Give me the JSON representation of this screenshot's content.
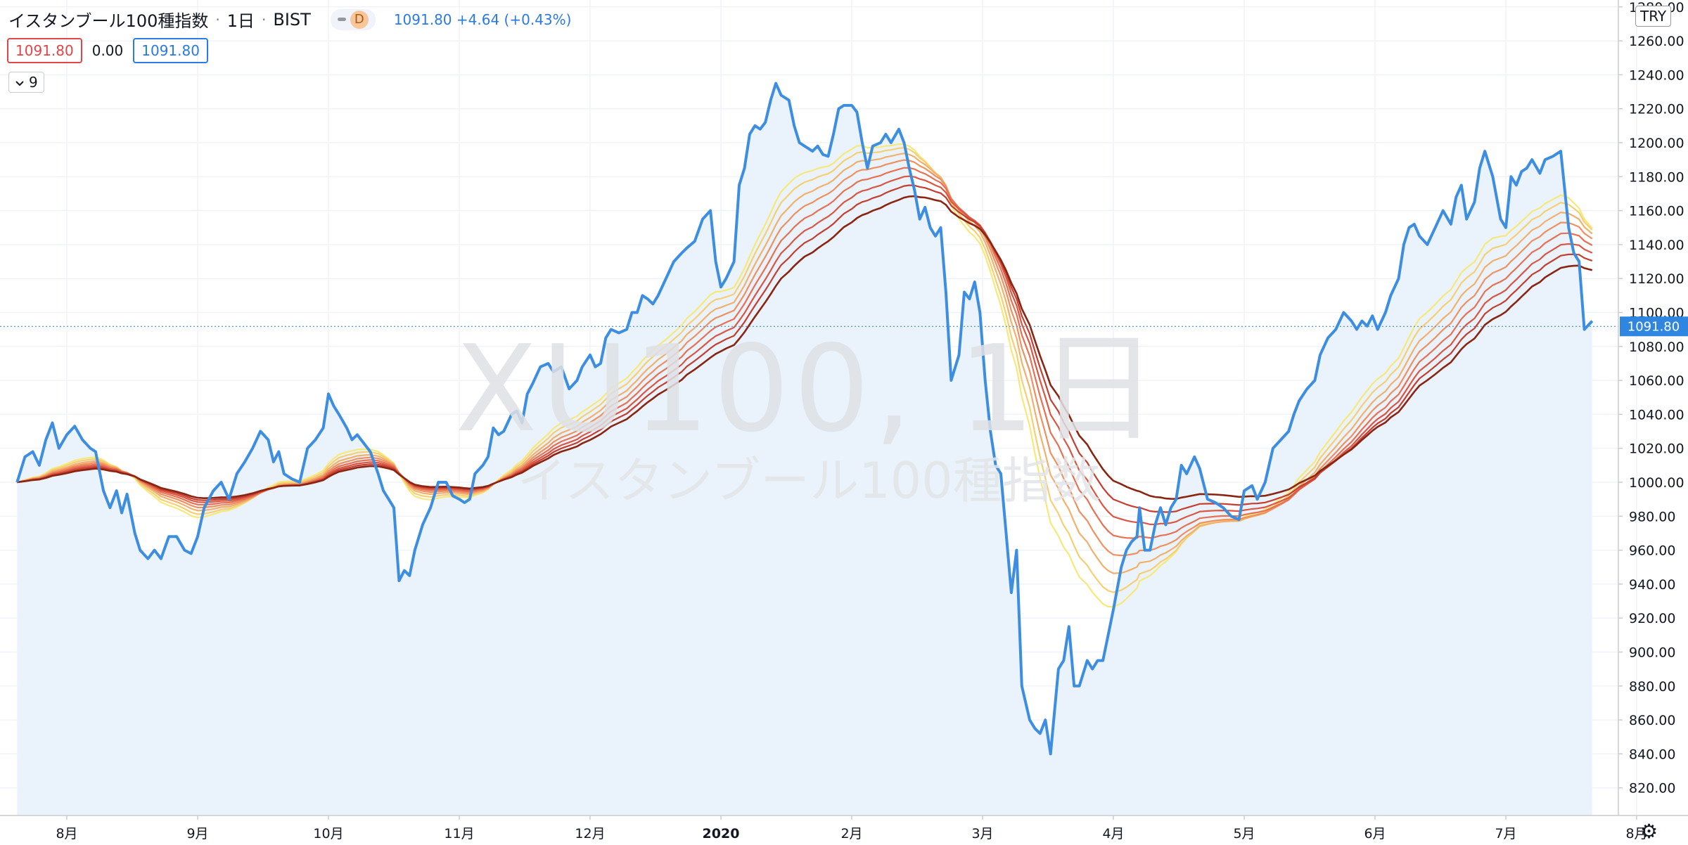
{
  "header": {
    "title": "イスタンブール100種指数",
    "interval": "1日",
    "exchange": "BIST",
    "interval_badge": "D",
    "last": "1091.80",
    "change": "+4.64",
    "change_pct": "(+0.43%)"
  },
  "indicator": {
    "value_red": "1091.80",
    "value_zero": "0.00",
    "value_blue": "1091.80",
    "collapse_count": "9"
  },
  "currency": "TRY",
  "watermark": {
    "symbol": "XU100, 1日",
    "name": "イスタンブール100種指数"
  },
  "colors": {
    "price_line": "#3d8ee0",
    "price_fill": "#eaf3fb",
    "ribbon": [
      "#f6e87a",
      "#f6cf73",
      "#f2b06c",
      "#ee9060",
      "#e77152",
      "#db5642",
      "#c53e30",
      "#8a2512"
    ]
  },
  "chart_data": {
    "type": "line",
    "xlabel": "",
    "ylabel": "",
    "ylim": [
      807,
      1284
    ],
    "price_axis_labels": [
      "820.00",
      "840.00",
      "860.00",
      "880.00",
      "900.00",
      "920.00",
      "940.00",
      "960.00",
      "980.00",
      "1000.00",
      "1020.00",
      "1040.00",
      "1060.00",
      "1080.00",
      "1100.00",
      "1120.00",
      "1140.00",
      "1160.00",
      "1180.00",
      "1200.00",
      "1220.00",
      "1240.00",
      "1260.00",
      "1280.00"
    ],
    "time_axis": [
      {
        "label": "8月",
        "x": 0.0
      },
      {
        "label": "9月",
        "x": 1.0
      },
      {
        "label": "10月",
        "x": 2.0
      },
      {
        "label": "11月",
        "x": 3.0
      },
      {
        "label": "12月",
        "x": 4.0
      },
      {
        "label": "2020",
        "x": 5.0
      },
      {
        "label": "2月",
        "x": 6.0
      },
      {
        "label": "3月",
        "x": 7.0
      },
      {
        "label": "4月",
        "x": 8.0
      },
      {
        "label": "5月",
        "x": 9.0
      },
      {
        "label": "6月",
        "x": 10.0
      },
      {
        "label": "7月",
        "x": 11.0
      },
      {
        "label": "8月",
        "x": 12.0
      }
    ],
    "price_tag": "1091.80",
    "series": [
      {
        "name": "XU100",
        "points": [
          [
            -0.38,
            1000
          ],
          [
            -0.32,
            1015
          ],
          [
            -0.26,
            1018
          ],
          [
            -0.21,
            1010
          ],
          [
            -0.16,
            1025
          ],
          [
            -0.11,
            1035
          ],
          [
            -0.06,
            1020
          ],
          [
            0.0,
            1028
          ],
          [
            0.06,
            1033
          ],
          [
            0.12,
            1025
          ],
          [
            0.18,
            1020
          ],
          [
            0.22,
            1018
          ],
          [
            0.28,
            995
          ],
          [
            0.33,
            985
          ],
          [
            0.38,
            995
          ],
          [
            0.42,
            982
          ],
          [
            0.46,
            993
          ],
          [
            0.52,
            970
          ],
          [
            0.56,
            960
          ],
          [
            0.62,
            955
          ],
          [
            0.67,
            960
          ],
          [
            0.72,
            955
          ],
          [
            0.78,
            968
          ],
          [
            0.84,
            968
          ],
          [
            0.9,
            960
          ],
          [
            0.95,
            958
          ],
          [
            1.0,
            968
          ],
          [
            1.05,
            985
          ],
          [
            1.12,
            995
          ],
          [
            1.18,
            1000
          ],
          [
            1.24,
            990
          ],
          [
            1.3,
            1005
          ],
          [
            1.36,
            1012
          ],
          [
            1.42,
            1020
          ],
          [
            1.48,
            1030
          ],
          [
            1.54,
            1025
          ],
          [
            1.58,
            1012
          ],
          [
            1.62,
            1018
          ],
          [
            1.66,
            1005
          ],
          [
            1.72,
            1002
          ],
          [
            1.78,
            1000
          ],
          [
            1.84,
            1020
          ],
          [
            1.9,
            1025
          ],
          [
            1.96,
            1032
          ],
          [
            2.0,
            1052
          ],
          [
            2.04,
            1045
          ],
          [
            2.08,
            1040
          ],
          [
            2.14,
            1032
          ],
          [
            2.18,
            1025
          ],
          [
            2.22,
            1028
          ],
          [
            2.28,
            1022
          ],
          [
            2.32,
            1018
          ],
          [
            2.38,
            1005
          ],
          [
            2.42,
            995
          ],
          [
            2.46,
            990
          ],
          [
            2.5,
            985
          ],
          [
            2.54,
            942
          ],
          [
            2.58,
            948
          ],
          [
            2.62,
            945
          ],
          [
            2.66,
            960
          ],
          [
            2.72,
            975
          ],
          [
            2.78,
            985
          ],
          [
            2.84,
            1000
          ],
          [
            2.9,
            1000
          ],
          [
            2.95,
            992
          ],
          [
            3.0,
            990
          ],
          [
            3.04,
            988
          ],
          [
            3.08,
            990
          ],
          [
            3.12,
            1005
          ],
          [
            3.18,
            1010
          ],
          [
            3.22,
            1015
          ],
          [
            3.26,
            1032
          ],
          [
            3.3,
            1028
          ],
          [
            3.34,
            1030
          ],
          [
            3.4,
            1040
          ],
          [
            3.44,
            1042
          ],
          [
            3.48,
            1035
          ],
          [
            3.52,
            1052
          ],
          [
            3.56,
            1058
          ],
          [
            3.62,
            1068
          ],
          [
            3.68,
            1070
          ],
          [
            3.72,
            1065
          ],
          [
            3.78,
            1068
          ],
          [
            3.84,
            1055
          ],
          [
            3.9,
            1060
          ],
          [
            3.94,
            1068
          ],
          [
            4.0,
            1075
          ],
          [
            4.04,
            1068
          ],
          [
            4.08,
            1070
          ],
          [
            4.12,
            1085
          ],
          [
            4.16,
            1090
          ],
          [
            4.22,
            1088
          ],
          [
            4.28,
            1090
          ],
          [
            4.32,
            1100
          ],
          [
            4.36,
            1100
          ],
          [
            4.4,
            1110
          ],
          [
            4.44,
            1108
          ],
          [
            4.48,
            1105
          ],
          [
            4.52,
            1110
          ],
          [
            4.58,
            1120
          ],
          [
            4.64,
            1130
          ],
          [
            4.7,
            1135
          ],
          [
            4.74,
            1138
          ],
          [
            4.8,
            1142
          ],
          [
            4.86,
            1155
          ],
          [
            4.92,
            1160
          ],
          [
            4.96,
            1130
          ],
          [
            5.0,
            1115
          ],
          [
            5.04,
            1120
          ],
          [
            5.1,
            1130
          ],
          [
            5.14,
            1175
          ],
          [
            5.18,
            1185
          ],
          [
            5.22,
            1205
          ],
          [
            5.26,
            1210
          ],
          [
            5.3,
            1208
          ],
          [
            5.34,
            1212
          ],
          [
            5.38,
            1225
          ],
          [
            5.42,
            1235
          ],
          [
            5.46,
            1228
          ],
          [
            5.52,
            1225
          ],
          [
            5.56,
            1210
          ],
          [
            5.6,
            1200
          ],
          [
            5.64,
            1198
          ],
          [
            5.7,
            1195
          ],
          [
            5.74,
            1198
          ],
          [
            5.78,
            1193
          ],
          [
            5.82,
            1192
          ],
          [
            5.86,
            1205
          ],
          [
            5.9,
            1220
          ],
          [
            5.94,
            1222
          ],
          [
            6.0,
            1222
          ],
          [
            6.04,
            1218
          ],
          [
            6.08,
            1200
          ],
          [
            6.12,
            1185
          ],
          [
            6.16,
            1198
          ],
          [
            6.22,
            1200
          ],
          [
            6.26,
            1205
          ],
          [
            6.3,
            1200
          ],
          [
            6.36,
            1208
          ],
          [
            6.4,
            1200
          ],
          [
            6.44,
            1185
          ],
          [
            6.48,
            1172
          ],
          [
            6.52,
            1155
          ],
          [
            6.56,
            1162
          ],
          [
            6.6,
            1150
          ],
          [
            6.64,
            1145
          ],
          [
            6.68,
            1150
          ],
          [
            6.72,
            1112
          ],
          [
            6.76,
            1060
          ],
          [
            6.82,
            1075
          ],
          [
            6.86,
            1112
          ],
          [
            6.9,
            1108
          ],
          [
            6.94,
            1118
          ],
          [
            6.98,
            1100
          ],
          [
            7.02,
            1060
          ],
          [
            7.06,
            1030
          ],
          [
            7.1,
            1010
          ],
          [
            7.14,
            1005
          ],
          [
            7.18,
            970
          ],
          [
            7.22,
            935
          ],
          [
            7.26,
            960
          ],
          [
            7.3,
            880
          ],
          [
            7.36,
            860
          ],
          [
            7.4,
            855
          ],
          [
            7.44,
            852
          ],
          [
            7.48,
            860
          ],
          [
            7.52,
            840
          ],
          [
            7.58,
            890
          ],
          [
            7.62,
            895
          ],
          [
            7.66,
            915
          ],
          [
            7.7,
            880
          ],
          [
            7.74,
            880
          ],
          [
            7.8,
            895
          ],
          [
            7.84,
            890
          ],
          [
            7.88,
            895
          ],
          [
            7.92,
            895
          ],
          [
            7.96,
            910
          ],
          [
            8.0,
            925
          ],
          [
            8.06,
            950
          ],
          [
            8.1,
            960
          ],
          [
            8.14,
            965
          ],
          [
            8.18,
            968
          ],
          [
            8.2,
            985
          ],
          [
            8.24,
            960
          ],
          [
            8.28,
            960
          ],
          [
            8.32,
            975
          ],
          [
            8.36,
            985
          ],
          [
            8.4,
            975
          ],
          [
            8.44,
            985
          ],
          [
            8.48,
            990
          ],
          [
            8.52,
            1010
          ],
          [
            8.56,
            1005
          ],
          [
            8.62,
            1015
          ],
          [
            8.66,
            1008
          ],
          [
            8.72,
            990
          ],
          [
            8.78,
            988
          ],
          [
            8.84,
            985
          ],
          [
            8.9,
            980
          ],
          [
            8.96,
            978
          ],
          [
            9.0,
            995
          ],
          [
            9.06,
            998
          ],
          [
            9.1,
            990
          ],
          [
            9.16,
            1000
          ],
          [
            9.22,
            1020
          ],
          [
            9.28,
            1025
          ],
          [
            9.34,
            1030
          ],
          [
            9.38,
            1040
          ],
          [
            9.42,
            1048
          ],
          [
            9.48,
            1055
          ],
          [
            9.54,
            1060
          ],
          [
            9.58,
            1075
          ],
          [
            9.64,
            1085
          ],
          [
            9.7,
            1090
          ],
          [
            9.76,
            1100
          ],
          [
            9.82,
            1095
          ],
          [
            9.86,
            1090
          ],
          [
            9.9,
            1095
          ],
          [
            9.94,
            1092
          ],
          [
            9.98,
            1098
          ],
          [
            10.02,
            1090
          ],
          [
            10.08,
            1100
          ],
          [
            10.12,
            1110
          ],
          [
            10.18,
            1120
          ],
          [
            10.22,
            1140
          ],
          [
            10.26,
            1150
          ],
          [
            10.3,
            1152
          ],
          [
            10.34,
            1145
          ],
          [
            10.4,
            1140
          ],
          [
            10.46,
            1150
          ],
          [
            10.52,
            1160
          ],
          [
            10.58,
            1152
          ],
          [
            10.62,
            1168
          ],
          [
            10.66,
            1175
          ],
          [
            10.7,
            1155
          ],
          [
            10.76,
            1165
          ],
          [
            10.8,
            1185
          ],
          [
            10.84,
            1195
          ],
          [
            10.9,
            1180
          ],
          [
            10.96,
            1155
          ],
          [
            11.0,
            1150
          ],
          [
            11.04,
            1180
          ],
          [
            11.08,
            1175
          ],
          [
            11.12,
            1183
          ],
          [
            11.16,
            1185
          ],
          [
            11.2,
            1190
          ],
          [
            11.26,
            1182
          ],
          [
            11.3,
            1190
          ],
          [
            11.36,
            1192
          ],
          [
            11.42,
            1195
          ],
          [
            11.48,
            1150
          ],
          [
            11.52,
            1135
          ],
          [
            11.56,
            1130
          ],
          [
            11.6,
            1090
          ],
          [
            11.66,
            1095
          ]
        ]
      }
    ]
  }
}
